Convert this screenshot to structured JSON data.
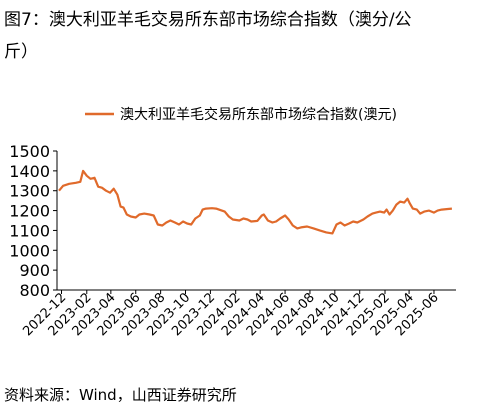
{
  "figure": {
    "title_line1": "图7：澳大利亚羊毛交易所东部市场综合指数（澳分/公",
    "title_line2": "斤）",
    "source": "资料来源：Wind，山西证券研究所"
  },
  "colors": {
    "series": "#E06A2B",
    "axis": "#000000"
  },
  "chart_data": {
    "type": "line",
    "x_axis_type": "date",
    "ylim": [
      800,
      1500
    ],
    "yticks": [
      800,
      900,
      1000,
      1100,
      1200,
      1300,
      1400,
      1500
    ],
    "xlim": [
      "2022-11-20",
      "2025-07-25"
    ],
    "xticks": [
      "2022-12",
      "2023-02",
      "2023-04",
      "2023-06",
      "2023-08",
      "2023-10",
      "2023-12",
      "2024-02",
      "2024-04",
      "2024-06",
      "2024-08",
      "2024-10",
      "2024-12",
      "2025-02",
      "2025-04",
      "2025-06"
    ],
    "grid": false,
    "legend": "top-center",
    "series": [
      {
        "name": "澳大利亚羊毛交易所东部市场综合指数(澳元)",
        "color": "#E06A2B",
        "points": [
          [
            "2022-11-25",
            1300
          ],
          [
            "2022-12-05",
            1325
          ],
          [
            "2022-12-20",
            1335
          ],
          [
            "2023-01-05",
            1340
          ],
          [
            "2023-01-16",
            1345
          ],
          [
            "2023-01-23",
            1400
          ],
          [
            "2023-02-01",
            1375
          ],
          [
            "2023-02-10",
            1360
          ],
          [
            "2023-02-20",
            1365
          ],
          [
            "2023-03-01",
            1320
          ],
          [
            "2023-03-10",
            1315
          ],
          [
            "2023-03-20",
            1300
          ],
          [
            "2023-03-30",
            1290
          ],
          [
            "2023-04-08",
            1310
          ],
          [
            "2023-04-17",
            1280
          ],
          [
            "2023-04-25",
            1220
          ],
          [
            "2023-05-02",
            1215
          ],
          [
            "2023-05-10",
            1180
          ],
          [
            "2023-05-20",
            1170
          ],
          [
            "2023-06-01",
            1165
          ],
          [
            "2023-06-10",
            1180
          ],
          [
            "2023-06-22",
            1185
          ],
          [
            "2023-07-05",
            1180
          ],
          [
            "2023-07-15",
            1175
          ],
          [
            "2023-07-25",
            1130
          ],
          [
            "2023-08-05",
            1125
          ],
          [
            "2023-08-15",
            1140
          ],
          [
            "2023-08-25",
            1150
          ],
          [
            "2023-09-05",
            1140
          ],
          [
            "2023-09-15",
            1130
          ],
          [
            "2023-09-25",
            1145
          ],
          [
            "2023-10-05",
            1135
          ],
          [
            "2023-10-15",
            1130
          ],
          [
            "2023-10-25",
            1160
          ],
          [
            "2023-11-05",
            1175
          ],
          [
            "2023-11-12",
            1205
          ],
          [
            "2023-11-20",
            1210
          ],
          [
            "2023-12-05",
            1212
          ],
          [
            "2023-12-15",
            1210
          ],
          [
            "2024-01-05",
            1195
          ],
          [
            "2024-01-15",
            1170
          ],
          [
            "2024-01-25",
            1155
          ],
          [
            "2024-02-10",
            1150
          ],
          [
            "2024-02-20",
            1160
          ],
          [
            "2024-03-01",
            1155
          ],
          [
            "2024-03-10",
            1145
          ],
          [
            "2024-03-25",
            1148
          ],
          [
            "2024-04-05",
            1175
          ],
          [
            "2024-04-10",
            1180
          ],
          [
            "2024-04-20",
            1150
          ],
          [
            "2024-05-01",
            1140
          ],
          [
            "2024-05-10",
            1145
          ],
          [
            "2024-05-20",
            1160
          ],
          [
            "2024-06-01",
            1175
          ],
          [
            "2024-06-10",
            1155
          ],
          [
            "2024-06-20",
            1125
          ],
          [
            "2024-07-01",
            1110
          ],
          [
            "2024-07-10",
            1115
          ],
          [
            "2024-07-25",
            1120
          ],
          [
            "2024-08-10",
            1110
          ],
          [
            "2024-08-25",
            1100
          ],
          [
            "2024-09-10",
            1090
          ],
          [
            "2024-09-25",
            1085
          ],
          [
            "2024-10-05",
            1130
          ],
          [
            "2024-10-15",
            1140
          ],
          [
            "2024-10-25",
            1125
          ],
          [
            "2024-11-05",
            1135
          ],
          [
            "2024-11-15",
            1145
          ],
          [
            "2024-11-25",
            1140
          ],
          [
            "2024-12-10",
            1155
          ],
          [
            "2024-12-20",
            1170
          ],
          [
            "2025-01-01",
            1185
          ],
          [
            "2025-01-10",
            1190
          ],
          [
            "2025-01-20",
            1195
          ],
          [
            "2025-01-30",
            1190
          ],
          [
            "2025-02-05",
            1205
          ],
          [
            "2025-02-12",
            1180
          ],
          [
            "2025-02-20",
            1200
          ],
          [
            "2025-03-01",
            1230
          ],
          [
            "2025-03-10",
            1245
          ],
          [
            "2025-03-20",
            1240
          ],
          [
            "2025-03-28",
            1260
          ],
          [
            "2025-04-03",
            1235
          ],
          [
            "2025-04-10",
            1210
          ],
          [
            "2025-04-20",
            1205
          ],
          [
            "2025-04-28",
            1185
          ],
          [
            "2025-05-08",
            1195
          ],
          [
            "2025-05-20",
            1200
          ],
          [
            "2025-06-01",
            1190
          ],
          [
            "2025-06-10",
            1200
          ],
          [
            "2025-06-20",
            1205
          ],
          [
            "2025-07-05",
            1208
          ],
          [
            "2025-07-15",
            1210
          ]
        ]
      }
    ]
  }
}
